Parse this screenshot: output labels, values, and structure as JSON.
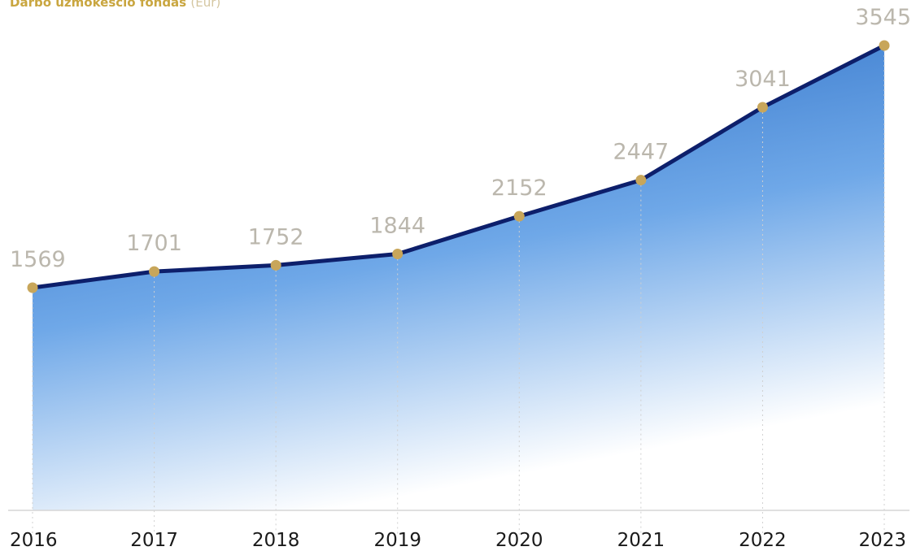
{
  "title": {
    "main": "Darbo užmokesčio fondas",
    "unit": "(Eur)"
  },
  "colors": {
    "line": "#0d1f6b",
    "marker": "#c8a65a",
    "area_top": "#1f63bf",
    "area_bottom": "#ffffff",
    "axis": "#d6d6d6",
    "gridline": "#d0d0d0",
    "value_label": "#bbb7ad",
    "title": "#c9a640"
  },
  "chart_data": {
    "type": "area",
    "title": "Darbo užmokesčio fondas (Eur)",
    "categories": [
      "2016",
      "2017",
      "2018",
      "2019",
      "2020",
      "2021",
      "2022",
      "2023"
    ],
    "values": [
      1569,
      1701,
      1752,
      1844,
      2152,
      2447,
      3041,
      3545
    ],
    "data_labels": [
      "1569",
      "1701",
      "1752",
      "1844",
      "2152",
      "2447",
      "3041",
      "3545"
    ],
    "xlabel": "",
    "ylabel": "",
    "grid": "vertical dotted",
    "legend": "none"
  }
}
